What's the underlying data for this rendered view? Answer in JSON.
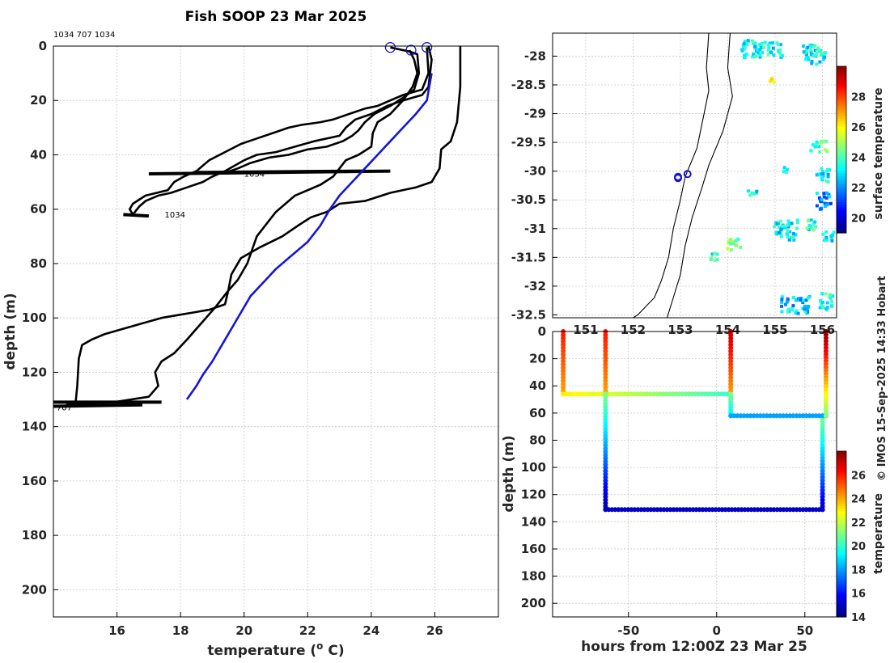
{
  "title": "Fish SOOP 23 Mar 2025",
  "id_text": "1034 707 1034",
  "credit": "© IMOS 15-Sep-2025 14:33 Hobart",
  "colors": {
    "profile": "#000000",
    "highlight": "#1515d6",
    "grid": "#c8c8c8"
  },
  "chart_data": [
    {
      "type": "line",
      "panel": "temperature profiles",
      "xlabel": "temperature (",
      "xlabel_sup": "o",
      "xlabel_end": " C)",
      "ylabel": "depth (m)",
      "xlim": [
        14,
        28
      ],
      "ylim": [
        210,
        0
      ],
      "xticks": [
        16,
        18,
        20,
        22,
        24,
        26
      ],
      "yticks": [
        0,
        20,
        40,
        60,
        80,
        100,
        120,
        140,
        160,
        180,
        200
      ],
      "annotations": [
        {
          "text": "1034",
          "x": 20.0,
          "y": 48
        },
        {
          "text": "1034",
          "x": 17.5,
          "y": 63
        },
        {
          "text": "707",
          "x": 14.1,
          "y": 134
        }
      ],
      "start_markers": [
        {
          "x": 24.6,
          "y": 0.5
        },
        {
          "x": 25.25,
          "y": 1.5
        },
        {
          "x": 25.75,
          "y": 0.5
        }
      ],
      "series": [
        {
          "color": "#000000",
          "points": [
            [
              26.8,
              0
            ],
            [
              26.8,
              15
            ],
            [
              26.7,
              28
            ],
            [
              26.5,
              35
            ],
            [
              26.2,
              38
            ],
            [
              26.15,
              45
            ],
            [
              25.9,
              50
            ],
            [
              25.4,
              52
            ],
            [
              24.6,
              54
            ],
            [
              23.8,
              57
            ],
            [
              23.0,
              58
            ],
            [
              22.6,
              61
            ],
            [
              22.1,
              63
            ],
            [
              21.7,
              66
            ],
            [
              21.2,
              70
            ],
            [
              20.5,
              74
            ],
            [
              19.9,
              78
            ],
            [
              19.6,
              84
            ],
            [
              19.5,
              90
            ],
            [
              19.4,
              95
            ],
            [
              18.9,
              97
            ],
            [
              18.4,
              98
            ],
            [
              17.9,
              99
            ],
            [
              17.4,
              100
            ],
            [
              16.8,
              102
            ],
            [
              16.2,
              104
            ],
            [
              15.6,
              106
            ],
            [
              15.2,
              108
            ],
            [
              14.9,
              110
            ],
            [
              14.8,
              115
            ],
            [
              14.75,
              125
            ],
            [
              14.7,
              131
            ]
          ]
        },
        {
          "color": "#000000",
          "points": [
            [
              25.8,
              0
            ],
            [
              25.9,
              5
            ],
            [
              25.8,
              15
            ],
            [
              25.6,
              18
            ],
            [
              25.0,
              20
            ],
            [
              24.5,
              22
            ],
            [
              24.0,
              25
            ],
            [
              23.5,
              27
            ],
            [
              23.2,
              30
            ],
            [
              23.0,
              33
            ],
            [
              22.2,
              35
            ],
            [
              21.6,
              37
            ],
            [
              21.0,
              39
            ],
            [
              20.4,
              40
            ],
            [
              20.0,
              42
            ],
            [
              19.7,
              44
            ],
            [
              19.4,
              46
            ],
            [
              19.0,
              48
            ],
            [
              18.7,
              50
            ],
            [
              18.2,
              52
            ],
            [
              17.7,
              54
            ],
            [
              17.3,
              55
            ],
            [
              16.9,
              57
            ],
            [
              16.7,
              59
            ],
            [
              16.5,
              62
            ]
          ]
        },
        {
          "color": "#000000",
          "points": [
            [
              25.75,
              0.5
            ],
            [
              25.8,
              10
            ],
            [
              25.6,
              16
            ],
            [
              25.0,
              18
            ],
            [
              24.6,
              20
            ],
            [
              24.2,
              22
            ],
            [
              23.8,
              23
            ],
            [
              23.3,
              25
            ],
            [
              22.8,
              27
            ],
            [
              22.4,
              28
            ],
            [
              21.8,
              29
            ],
            [
              21.4,
              30
            ],
            [
              20.9,
              32
            ],
            [
              20.4,
              34
            ],
            [
              19.9,
              36
            ],
            [
              19.4,
              39
            ],
            [
              18.9,
              42
            ],
            [
              18.5,
              46
            ],
            [
              18.1,
              48
            ],
            [
              17.8,
              50
            ],
            [
              17.6,
              53
            ],
            [
              16.9,
              55
            ],
            [
              16.5,
              58
            ],
            [
              16.4,
              60
            ],
            [
              16.5,
              62
            ]
          ]
        },
        {
          "color": "#000000",
          "points": [
            [
              24.6,
              0.5
            ],
            [
              25.2,
              2
            ],
            [
              25.45,
              3
            ],
            [
              25.5,
              10
            ],
            [
              25.35,
              16
            ],
            [
              25.0,
              19
            ],
            [
              24.6,
              22
            ],
            [
              24.1,
              25
            ],
            [
              23.8,
              28
            ],
            [
              23.6,
              31
            ],
            [
              23.4,
              33
            ],
            [
              23.1,
              35
            ],
            [
              22.6,
              37
            ],
            [
              22.0,
              38
            ],
            [
              21.4,
              40
            ],
            [
              20.8,
              41
            ],
            [
              20.2,
              43
            ],
            [
              19.8,
              45
            ],
            [
              19.3,
              47
            ]
          ]
        },
        {
          "color": "#000000",
          "points": [
            [
              25.2,
              1.5
            ],
            [
              25.35,
              5
            ],
            [
              25.45,
              10
            ],
            [
              25.3,
              15
            ],
            [
              25.0,
              20
            ],
            [
              24.6,
              25
            ],
            [
              24.2,
              28
            ],
            [
              24.05,
              32
            ],
            [
              24.0,
              37
            ],
            [
              23.6,
              40
            ],
            [
              23.2,
              42
            ],
            [
              23.0,
              45
            ],
            [
              22.8,
              48
            ],
            [
              22.4,
              51
            ],
            [
              22.0,
              53
            ],
            [
              21.6,
              55
            ],
            [
              21.3,
              58
            ],
            [
              21.0,
              61
            ],
            [
              20.8,
              64
            ],
            [
              20.4,
              70
            ],
            [
              20.1,
              80
            ],
            [
              19.8,
              86
            ],
            [
              19.5,
              90
            ],
            [
              19.1,
              96
            ],
            [
              18.8,
              100
            ],
            [
              18.5,
              104
            ],
            [
              18.2,
              108
            ],
            [
              17.8,
              113
            ],
            [
              17.4,
              116
            ],
            [
              17.2,
              120
            ],
            [
              17.3,
              125
            ],
            [
              17.0,
              129
            ],
            [
              15.9,
              131
            ],
            [
              14.4,
              132
            ]
          ]
        },
        {
          "color": "#000000",
          "points": [
            [
              24.6,
              46
            ],
            [
              17.0,
              47
            ]
          ]
        },
        {
          "color": "#000000",
          "points": [
            [
              18.5,
              46.5
            ],
            [
              23.8,
              46
            ]
          ]
        },
        {
          "color": "#000000",
          "points": [
            [
              16.2,
              62
            ],
            [
              17.0,
              62.5
            ]
          ]
        },
        {
          "color": "#000000",
          "points": [
            [
              14.0,
              131
            ],
            [
              17.4,
              131
            ]
          ]
        },
        {
          "color": "#000000",
          "points": [
            [
              14.0,
              132.5
            ],
            [
              16.8,
              132
            ]
          ]
        },
        {
          "color": "#1515d6",
          "points": [
            [
              25.9,
              10
            ],
            [
              25.75,
              20
            ],
            [
              25.4,
              25
            ],
            [
              25.0,
              30
            ],
            [
              24.6,
              35
            ],
            [
              24.2,
              40
            ],
            [
              23.8,
              45
            ],
            [
              23.4,
              50
            ],
            [
              23.0,
              55
            ],
            [
              22.7,
              60
            ],
            [
              22.4,
              66
            ],
            [
              22.0,
              72
            ],
            [
              21.5,
              77
            ],
            [
              21.0,
              82
            ],
            [
              20.6,
              87
            ],
            [
              20.2,
              92
            ],
            [
              19.9,
              98
            ],
            [
              19.6,
              104
            ],
            [
              19.3,
              110
            ],
            [
              19.0,
              116
            ],
            [
              18.7,
              121
            ],
            [
              18.5,
              125
            ],
            [
              18.2,
              130
            ]
          ]
        }
      ]
    },
    {
      "type": "heatmap",
      "panel": "surface temperature map",
      "xlim": [
        150.3,
        156.3
      ],
      "ylim": [
        -32.55,
        -27.6
      ],
      "yticks": [
        -28,
        -28.5,
        -29,
        -29.5,
        -30,
        -30.5,
        -31,
        -31.5,
        -32,
        -32.5
      ],
      "ytick_labels": [
        "-28",
        "-28.5",
        "-29",
        "-29.5",
        "-30",
        "-30.5",
        "-31",
        "-31.5",
        "-32",
        "-32.5"
      ],
      "xtick_labels": [
        "151",
        "152",
        "153",
        "154",
        "155",
        "156"
      ],
      "colorbar": {
        "label": "surface temperature",
        "range": [
          19,
          30
        ],
        "ticks": [
          20,
          22,
          24,
          26,
          28
        ]
      },
      "patches": [
        {
          "lon": 154.7,
          "lat": -27.85,
          "w": 0.9,
          "h": 0.3,
          "value": 23.2
        },
        {
          "lon": 155.8,
          "lat": -27.95,
          "w": 0.5,
          "h": 0.35,
          "value": 23.0
        },
        {
          "lon": 154.9,
          "lat": -28.4,
          "w": 0.1,
          "h": 0.08,
          "value": 26.0
        },
        {
          "lon": 155.9,
          "lat": -29.55,
          "w": 0.35,
          "h": 0.2,
          "value": 24.0
        },
        {
          "lon": 155.2,
          "lat": -29.95,
          "w": 0.2,
          "h": 0.1,
          "value": 23.5
        },
        {
          "lon": 156.0,
          "lat": -30.05,
          "w": 0.3,
          "h": 0.25,
          "value": 23.0
        },
        {
          "lon": 156.0,
          "lat": -30.5,
          "w": 0.3,
          "h": 0.3,
          "value": 22.0
        },
        {
          "lon": 155.2,
          "lat": -31.0,
          "w": 0.5,
          "h": 0.35,
          "value": 23.0
        },
        {
          "lon": 155.75,
          "lat": -30.9,
          "w": 0.25,
          "h": 0.2,
          "value": 23.5
        },
        {
          "lon": 156.1,
          "lat": -31.1,
          "w": 0.25,
          "h": 0.2,
          "value": 23.0
        },
        {
          "lon": 154.1,
          "lat": -31.25,
          "w": 0.3,
          "h": 0.2,
          "value": 24.5
        },
        {
          "lon": 153.7,
          "lat": -31.45,
          "w": 0.2,
          "h": 0.15,
          "value": 23.5
        },
        {
          "lon": 155.4,
          "lat": -32.3,
          "w": 0.6,
          "h": 0.3,
          "value": 22.5
        },
        {
          "lon": 156.05,
          "lat": -32.25,
          "w": 0.3,
          "h": 0.3,
          "value": 23.5
        },
        {
          "lon": 154.5,
          "lat": -30.35,
          "w": 0.2,
          "h": 0.1,
          "value": 23.0
        }
      ],
      "markers": [
        {
          "lon": 153.15,
          "lat": -30.05
        },
        {
          "lon": 152.95,
          "lat": -30.1
        },
        {
          "lon": 152.95,
          "lat": -30.12
        }
      ]
    },
    {
      "type": "scatter",
      "panel": "depth time series",
      "xlabel": "hours from 12:00Z 23 Mar 25",
      "ylabel": "depth (m)",
      "xlim": [
        -93,
        68
      ],
      "ylim": [
        210,
        0
      ],
      "xticks": [
        -50,
        0,
        50
      ],
      "yticks": [
        0,
        20,
        40,
        60,
        80,
        100,
        120,
        140,
        160,
        180,
        200
      ],
      "colorbar": {
        "label": "temperature",
        "range": [
          14,
          28
        ],
        "ticks": [
          14,
          16,
          18,
          20,
          22,
          24,
          26
        ]
      },
      "segments": [
        {
          "x": [
            -87,
            -87
          ],
          "y": [
            0,
            46
          ],
          "t": [
            26.0,
            24.0
          ]
        },
        {
          "x": [
            -87,
            8
          ],
          "y": [
            46,
            46
          ],
          "t": [
            23.0,
            20.0
          ]
        },
        {
          "x": [
            -63,
            -63
          ],
          "y": [
            0,
            46
          ],
          "t": [
            26.0,
            24.0
          ]
        },
        {
          "x": [
            -63,
            -63
          ],
          "y": [
            46,
            131
          ],
          "t": [
            21.0,
            14.5
          ]
        },
        {
          "x": [
            -63,
            60
          ],
          "y": [
            131,
            131
          ],
          "t": [
            15.0,
            15.0
          ]
        },
        {
          "x": [
            60,
            60
          ],
          "y": [
            131,
            62
          ],
          "t": [
            15.0,
            21.0
          ]
        },
        {
          "x": [
            8,
            8
          ],
          "y": [
            0,
            46
          ],
          "t": [
            27.0,
            24.0
          ]
        },
        {
          "x": [
            8,
            8
          ],
          "y": [
            46,
            62
          ],
          "t": [
            21.0,
            19.0
          ]
        },
        {
          "x": [
            8,
            62
          ],
          "y": [
            62,
            62
          ],
          "t": [
            18.0,
            18.0
          ]
        },
        {
          "x": [
            62,
            62
          ],
          "y": [
            0,
            62
          ],
          "t": [
            28.0,
            21.0
          ]
        }
      ]
    }
  ]
}
